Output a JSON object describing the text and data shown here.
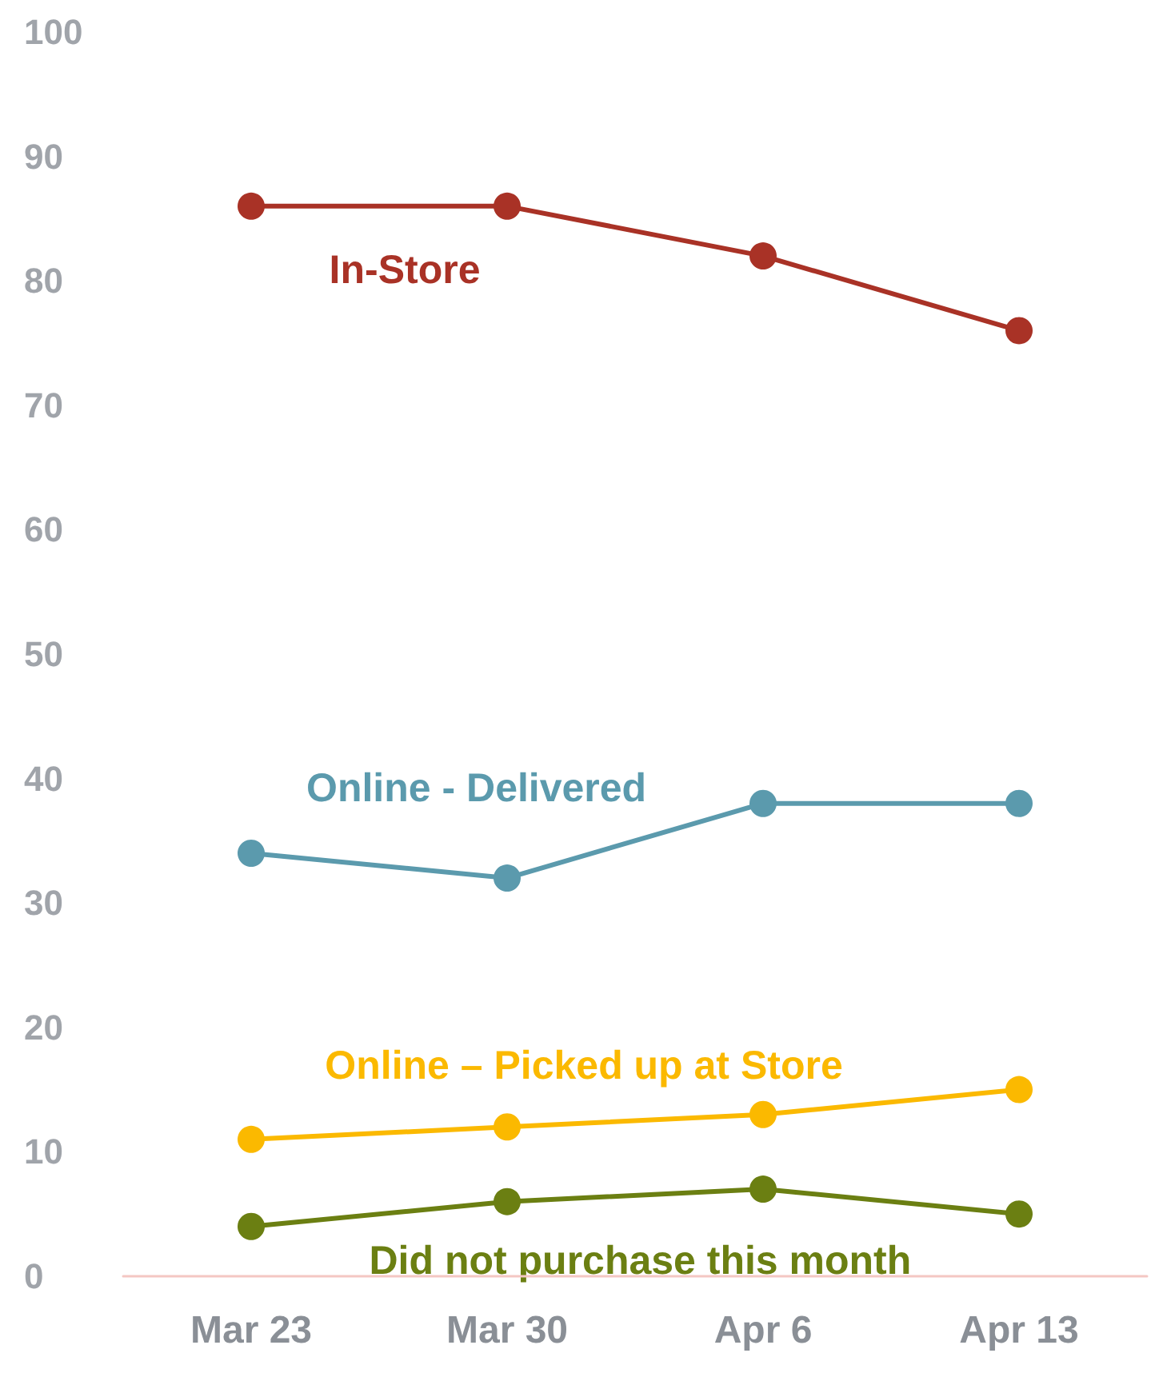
{
  "chart_data": {
    "type": "line",
    "categories": [
      "Mar 23",
      "Mar 30",
      "Apr 6",
      "Apr 13"
    ],
    "series": [
      {
        "name": "In-Store",
        "color": "#a93226",
        "values": [
          86,
          86,
          82,
          76
        ]
      },
      {
        "name": "Online - Delivered",
        "color": "#5b9aad",
        "values": [
          34,
          32,
          38,
          38
        ]
      },
      {
        "name": "Online – Picked up at Store",
        "color": "#fbb900",
        "values": [
          11,
          12,
          13,
          15
        ]
      },
      {
        "name": "Did not purchase this month",
        "color": "#6b7f12",
        "values": [
          4,
          6,
          7,
          5
        ]
      }
    ],
    "ylim": [
      0,
      100
    ],
    "yticks": [
      0,
      10,
      20,
      30,
      40,
      50,
      60,
      70,
      80,
      90,
      100
    ],
    "grid": false,
    "legend": false,
    "marker": "circle",
    "line_style": "solid"
  }
}
